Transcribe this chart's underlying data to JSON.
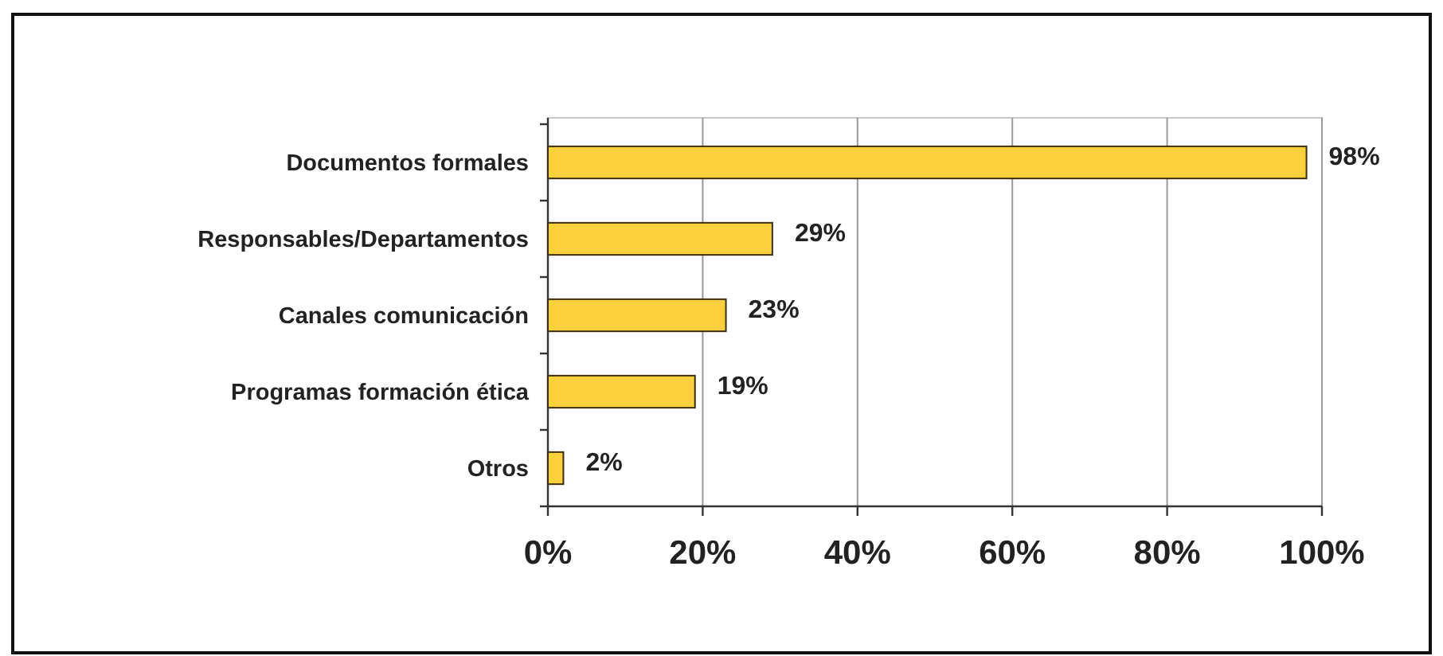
{
  "chart_data": {
    "type": "bar",
    "orientation": "horizontal",
    "categories": [
      "Documentos formales",
      "Responsables/Departamentos",
      "Canales comunicación",
      "Programas formación ética",
      "Otros"
    ],
    "values": [
      98,
      29,
      23,
      19,
      2
    ],
    "color": "#fcd03c",
    "xlim": [
      0,
      100
    ],
    "xticks": [
      {
        "value": 0,
        "label": "0%"
      },
      {
        "value": 20,
        "label": "20%"
      },
      {
        "value": 40,
        "label": "40%"
      },
      {
        "value": 60,
        "label": "60%"
      },
      {
        "value": 80,
        "label": "80%"
      },
      {
        "value": 100,
        "label": "100%"
      }
    ],
    "grid": "x",
    "value_labels": [
      "98%",
      "29%",
      "23%",
      "19%",
      "2%"
    ]
  }
}
